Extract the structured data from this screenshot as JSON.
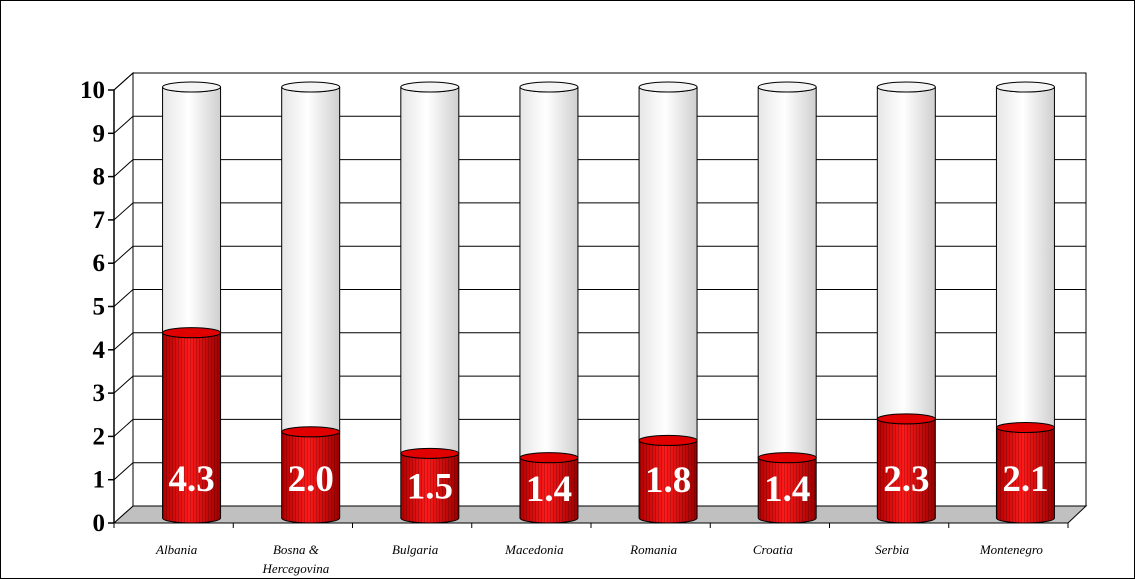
{
  "chart_data": {
    "type": "bar",
    "categories": [
      "Albania",
      "Bosna & Hercegovina",
      "Bulgaria",
      "Macedonia",
      "Romania",
      "Croatia",
      "Serbia",
      "Montenegro"
    ],
    "category_lines": [
      [
        "Albania"
      ],
      [
        "Bosna &",
        "Hercegovina"
      ],
      [
        "Bulgaria"
      ],
      [
        "Macedonia"
      ],
      [
        "Romania"
      ],
      [
        "Croatia"
      ],
      [
        "Serbia"
      ],
      [
        "Montenegro"
      ]
    ],
    "values": [
      4.3,
      2.0,
      1.5,
      1.4,
      1.8,
      1.4,
      2.3,
      2.1
    ],
    "value_labels": [
      "4.3",
      "2.0",
      "1.5",
      "1.4",
      "1.8",
      "1.4",
      "2.3",
      "2.1"
    ],
    "ylim": [
      0,
      10
    ],
    "yticks": [
      0,
      1,
      2,
      3,
      4,
      5,
      6,
      7,
      8,
      9,
      10
    ],
    "grid": true,
    "style": "3d-cylinder",
    "colors": {
      "value": "#e8000a",
      "value_dark": "#9a0000",
      "remainder": "#f2f2f2",
      "floor": "#c0c0c0",
      "label": "#ffffff"
    }
  }
}
